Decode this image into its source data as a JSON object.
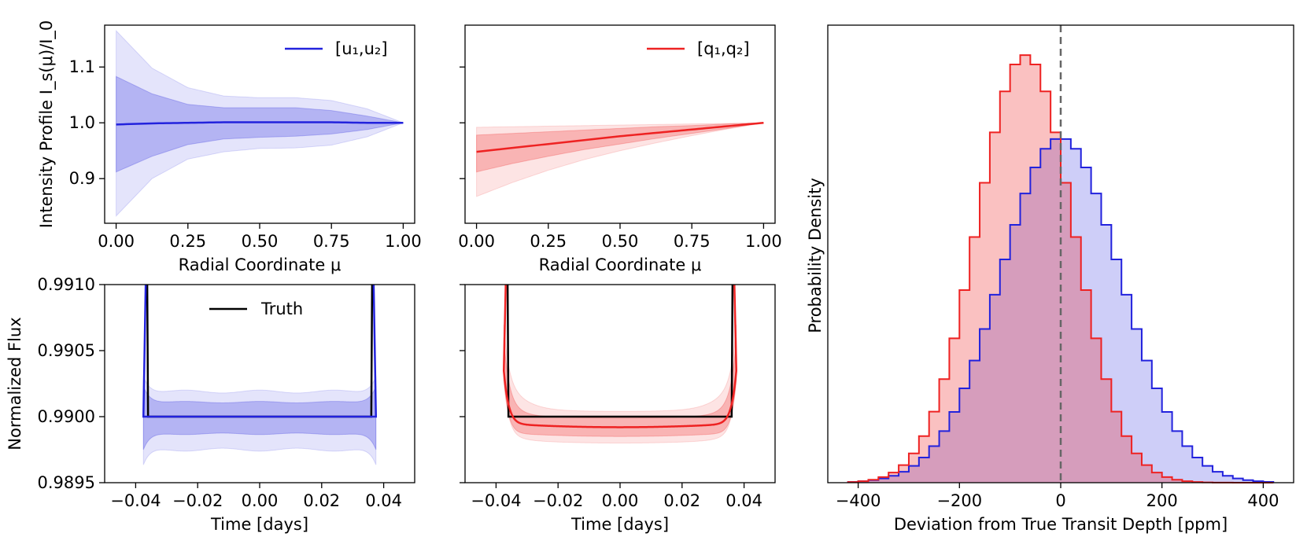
{
  "chart_data": [
    {
      "type": "line",
      "id": "panel_a",
      "xlabel": "Radial Coordinate μ",
      "ylabel": "Intensity Profile I_s(μ)/I_0",
      "xlim": [
        -0.04,
        1.04
      ],
      "ylim": [
        0.82,
        1.175
      ],
      "xticks": [
        0.0,
        0.25,
        0.5,
        0.75,
        1.0
      ],
      "xtick_labels": [
        "0.00",
        "0.25",
        "0.50",
        "0.75",
        "1.00"
      ],
      "yticks": [
        0.9,
        1.0,
        1.1
      ],
      "ytick_labels": [
        "0.9",
        "1.0",
        "1.1"
      ],
      "legend": {
        "label": "[u₁,u₂]",
        "position": "top-right"
      },
      "color": "#2222dd",
      "x": [
        0.0,
        0.125,
        0.25,
        0.375,
        0.5,
        0.625,
        0.75,
        0.875,
        1.0
      ],
      "series": [
        {
          "role": "median",
          "values": [
            0.997,
            0.999,
            1.0,
            1.001,
            1.001,
            1.001,
            1.001,
            1.0,
            1.0
          ]
        },
        {
          "role": "band1_upper",
          "values": [
            1.083,
            1.052,
            1.033,
            1.027,
            1.027,
            1.027,
            1.022,
            1.012,
            1.0
          ]
        },
        {
          "role": "band1_lower",
          "values": [
            0.912,
            0.94,
            0.961,
            0.971,
            0.974,
            0.976,
            0.98,
            0.988,
            1.0
          ]
        },
        {
          "role": "band2_upper",
          "values": [
            1.165,
            1.098,
            1.063,
            1.048,
            1.045,
            1.045,
            1.04,
            1.025,
            1.0
          ]
        },
        {
          "role": "band2_lower",
          "values": [
            0.833,
            0.9,
            0.935,
            0.948,
            0.954,
            0.955,
            0.96,
            0.975,
            1.0
          ]
        }
      ]
    },
    {
      "type": "line",
      "id": "panel_b",
      "xlabel": "Radial Coordinate μ",
      "ylabel": "",
      "xlim": [
        -0.04,
        1.04
      ],
      "ylim": [
        0.82,
        1.175
      ],
      "xticks": [
        0.0,
        0.25,
        0.5,
        0.75,
        1.0
      ],
      "xtick_labels": [
        "0.00",
        "0.25",
        "0.50",
        "0.75",
        "1.00"
      ],
      "yticks": [
        0.9,
        1.0,
        1.1
      ],
      "legend": {
        "label": "[q₁,q₂]",
        "position": "top-right"
      },
      "color": "#ee2222",
      "x": [
        0.0,
        0.125,
        0.25,
        0.375,
        0.5,
        0.625,
        0.75,
        0.875,
        1.0
      ],
      "series": [
        {
          "role": "median",
          "values": [
            0.948,
            0.955,
            0.962,
            0.969,
            0.976,
            0.982,
            0.988,
            0.994,
            1.0
          ]
        },
        {
          "role": "band1_upper",
          "values": [
            0.978,
            0.981,
            0.984,
            0.987,
            0.99,
            0.993,
            0.995,
            0.998,
            1.0
          ]
        },
        {
          "role": "band1_lower",
          "values": [
            0.912,
            0.927,
            0.94,
            0.952,
            0.962,
            0.972,
            0.981,
            0.99,
            1.0
          ]
        },
        {
          "role": "band2_upper",
          "values": [
            0.992,
            0.993,
            0.994,
            0.995,
            0.996,
            0.997,
            0.998,
            0.999,
            1.0
          ]
        },
        {
          "role": "band2_lower",
          "values": [
            0.868,
            0.893,
            0.915,
            0.934,
            0.95,
            0.964,
            0.977,
            0.989,
            1.0
          ]
        }
      ]
    },
    {
      "type": "line",
      "id": "panel_c",
      "xlabel": "Time [days]",
      "ylabel": "Normalized Flux",
      "xlim": [
        -0.05,
        0.05
      ],
      "ylim": [
        0.9895,
        0.991
      ],
      "xticks": [
        -0.04,
        -0.02,
        0.0,
        0.02,
        0.04
      ],
      "xtick_labels": [
        "−0.04",
        "−0.02",
        "0.00",
        "0.02",
        "0.04"
      ],
      "yticks": [
        0.9895,
        0.99,
        0.9905,
        0.991
      ],
      "ytick_labels": [
        "0.9895",
        "0.9900",
        "0.9905",
        "0.9910"
      ],
      "legend": {
        "label": "Truth",
        "position": "top-center"
      },
      "color": "#2222dd",
      "truth": {
        "t1": -0.036,
        "t2": 0.036,
        "depth": 0.99
      },
      "model": {
        "offset": 0.0,
        "curv": 0.0
      },
      "band1": {
        "upper": 0.99011,
        "lower": 0.98987,
        "wiggle": 5.5e-06,
        "period": 0.024
      },
      "band2": {
        "upper": 0.99019,
        "lower": 0.98975,
        "wiggle": 1.1e-05,
        "period": 0.024
      }
    },
    {
      "type": "line",
      "id": "panel_d",
      "xlabel": "Time [days]",
      "ylabel": "",
      "xlim": [
        -0.05,
        0.05
      ],
      "ylim": [
        0.9895,
        0.991
      ],
      "xticks": [
        -0.04,
        -0.02,
        0.0,
        0.02,
        0.04
      ],
      "xtick_labels": [
        "−0.04",
        "−0.02",
        "0.00",
        "0.02",
        "0.04"
      ],
      "yticks": [
        0.9895,
        0.99,
        0.9905,
        0.991
      ],
      "color": "#ee2222",
      "truth": {
        "t1": -0.036,
        "t2": 0.036,
        "depth": 0.99
      },
      "model": {
        "center": 0.98992,
        "curv": 2.5e-05
      },
      "band1": {
        "center_upper": 0.98999,
        "center_lower": 0.98985
      },
      "band2": {
        "center_upper": 0.99004,
        "center_lower": 0.9898
      }
    },
    {
      "type": "histogram",
      "id": "panel_e",
      "xlabel": "Deviation from True Transit Depth [ppm]",
      "ylabel": "Probability Density",
      "xlim": [
        -460,
        460
      ],
      "xticks": [
        -400,
        -200,
        0,
        200,
        400
      ],
      "xtick_labels": [
        "−400",
        "−200",
        "0",
        "200",
        "400"
      ],
      "vline": 0,
      "bin_width": 20,
      "series": [
        {
          "name": "[u₁,u₂]",
          "color": "#2222dd",
          "mean": 0,
          "sigma": 118,
          "peak": 1.0
        },
        {
          "name": "[q₁,q₂]",
          "color": "#ee2222",
          "mean": -70,
          "sigma": 95,
          "peak": 1.24
        }
      ]
    }
  ]
}
